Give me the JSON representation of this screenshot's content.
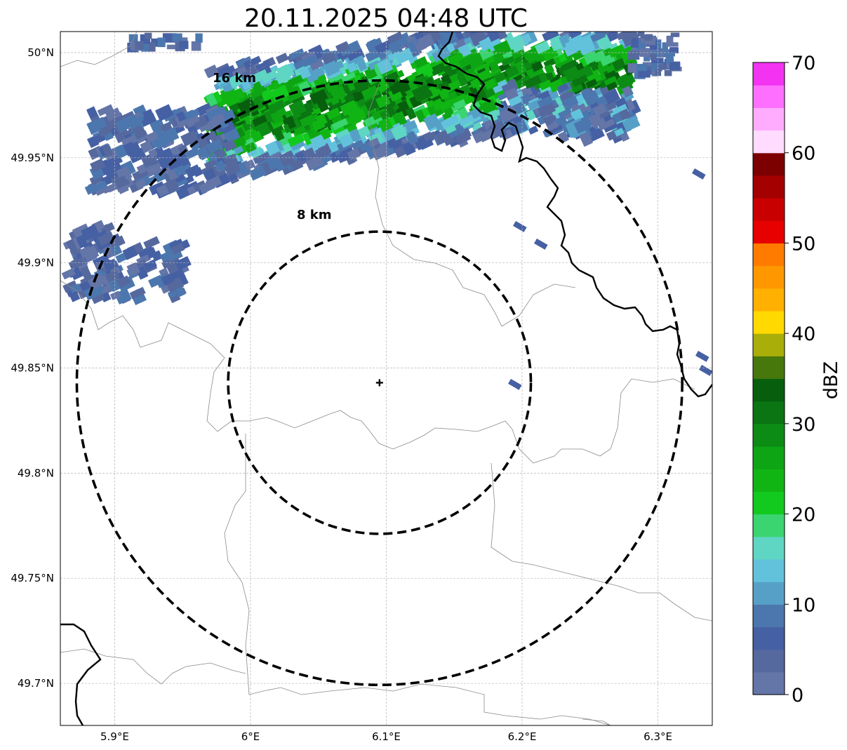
{
  "title": "20.11.2025 04:48 UTC",
  "map": {
    "lon_range": [
      5.86,
      6.34
    ],
    "lat_range": [
      49.68,
      50.01
    ],
    "x_ticks": [
      {
        "value": 5.9,
        "label": "5.9°E"
      },
      {
        "value": 6.0,
        "label": "6°E"
      },
      {
        "value": 6.1,
        "label": "6.1°E"
      },
      {
        "value": 6.2,
        "label": "6.2°E"
      },
      {
        "value": 6.3,
        "label": "6.3°E"
      }
    ],
    "y_ticks": [
      {
        "value": 50.0,
        "label": "50°N"
      },
      {
        "value": 49.95,
        "label": "49.95°N"
      },
      {
        "value": 49.9,
        "label": "49.9°N"
      },
      {
        "value": 49.85,
        "label": "49.85°N"
      },
      {
        "value": 49.8,
        "label": "49.8°N"
      },
      {
        "value": 49.75,
        "label": "49.75°N"
      },
      {
        "value": 49.7,
        "label": "49.7°N"
      }
    ],
    "grid": true,
    "radar_site": {
      "lon": 6.095,
      "lat": 49.843
    },
    "range_rings": [
      {
        "label": "8 km",
        "radius_km": 8
      },
      {
        "label": "16 km",
        "radius_km": 16
      }
    ]
  },
  "colorbar": {
    "label": "dBZ",
    "min": 0,
    "max": 70,
    "tick_labels": [
      "0",
      "10",
      "20",
      "30",
      "40",
      "50",
      "60",
      "70"
    ],
    "colors": [
      "#6475a8",
      "#56699e",
      "#4660a4",
      "#4c77ae",
      "#56a0c7",
      "#62c2dc",
      "#5fd5c3",
      "#3ad470",
      "#12c91d",
      "#10b514",
      "#0ea514",
      "#0c8c14",
      "#0a7512",
      "#075f0e",
      "#47780c",
      "#a9ae08",
      "#ffd900",
      "#ffb000",
      "#ff9800",
      "#ff7b00",
      "#e60000",
      "#c90000",
      "#a40000",
      "#7d0000",
      "#ffdcff",
      "#ffacff",
      "#ff6fff",
      "#f233f2"
    ]
  }
}
